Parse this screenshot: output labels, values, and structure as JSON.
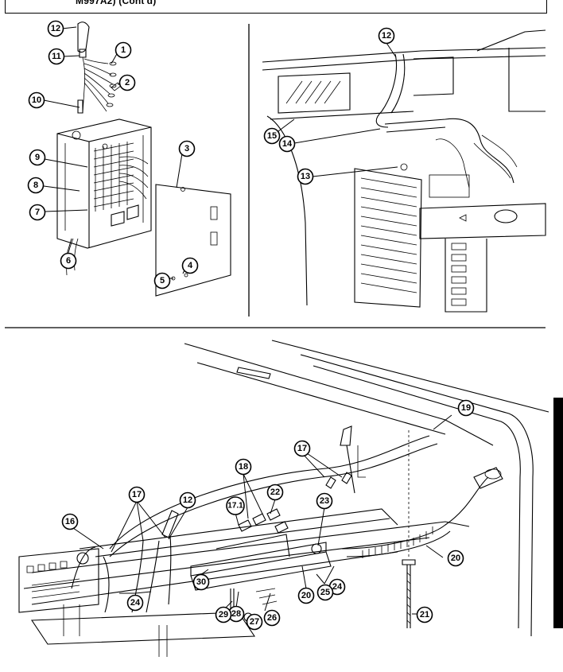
{
  "header": {
    "title": "M997A2) (Cont'd)"
  },
  "callouts": {
    "c1": "1",
    "c2": "2",
    "c3": "3",
    "c4": "4",
    "c5": "5",
    "c6": "6",
    "c7": "7",
    "c8": "8",
    "c9": "9",
    "c10": "10",
    "c11": "11",
    "c12a": "12",
    "c12b": "12",
    "c13": "13",
    "c14": "14",
    "c15": "15",
    "c16": "16",
    "c17a": "17",
    "c17b": "17",
    "c171": "17.1",
    "c18": "18",
    "c19": "19",
    "c20a": "20",
    "c20b": "20",
    "c21": "21",
    "c22": "22",
    "c23": "23",
    "c24a": "24",
    "c24b": "24",
    "c25": "25",
    "c26": "26",
    "c27": "27",
    "c28": "28",
    "c29": "29",
    "c30": "30",
    "c12c": "12"
  }
}
